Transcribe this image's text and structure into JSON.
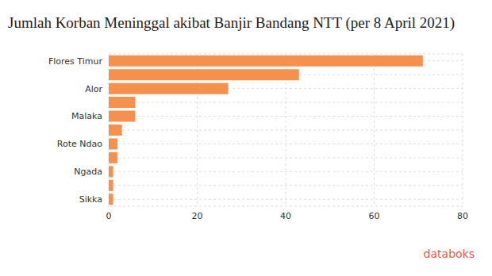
{
  "chart_data": {
    "type": "bar",
    "title": "Jumlah Korban Meninggal akibat Banjir Bandang NTT (per 8 April 2021)",
    "orientation": "horizontal",
    "categories": [
      "Flores Timur",
      null,
      "Alor",
      null,
      "Malaka",
      null,
      "Rote Ndao",
      null,
      "Ngada",
      null,
      "Sikka"
    ],
    "values": [
      71,
      43,
      27,
      6,
      6,
      3,
      2,
      2,
      1,
      1,
      1
    ],
    "color": "#f5904f",
    "xlim": [
      0,
      80
    ],
    "xticks": [
      0,
      20,
      40,
      60,
      80
    ],
    "grid": true,
    "annotations": [
      "databoks"
    ]
  }
}
